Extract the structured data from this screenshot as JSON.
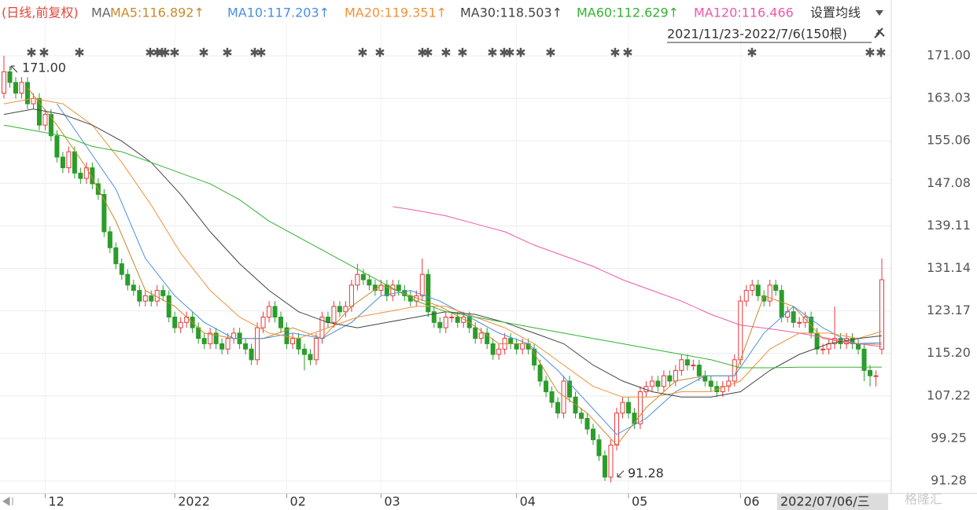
{
  "chart_data": {
    "type": "candlestick",
    "header": "(日线,前复权)",
    "ma_prefix": "MA",
    "settings_label": "设置均线",
    "range_label": "2021/11/23-2022/7/6(150根)",
    "cursor_label": "2022/07/06/三",
    "annotations": [
      "171.00",
      "91.28"
    ],
    "up_color": "#e8383d",
    "down_color": "#2a9d2a",
    "grid": true,
    "ylim": [
      88.92,
      181.46
    ],
    "yticks": [
      {
        "value": 171,
        "label": "171.00"
      },
      163.03,
      155.06,
      147.08,
      139.11,
      131.14,
      123.17,
      {
        "value": 115.2,
        "label": "115.20"
      },
      107.22,
      99.25,
      91.28
    ],
    "xticks": [
      {
        "value": 7,
        "label": "12"
      },
      {
        "value": 29,
        "label": "2022"
      },
      {
        "value": 48,
        "label": "02"
      },
      {
        "value": 64,
        "label": "03"
      },
      {
        "value": 87,
        "label": "04"
      },
      {
        "value": 106,
        "label": "05"
      },
      {
        "value": 125,
        "label": "06"
      }
    ],
    "ohlc": [
      [
        164,
        171,
        163,
        168
      ],
      [
        168,
        169,
        165,
        166
      ],
      [
        166,
        167,
        163,
        164
      ],
      [
        164,
        167,
        163,
        166
      ],
      [
        166,
        167,
        161,
        162
      ],
      [
        162,
        164,
        161,
        163
      ],
      [
        163,
        164,
        157,
        158
      ],
      [
        158,
        161,
        157,
        160
      ],
      [
        160,
        161,
        155,
        156
      ],
      [
        156,
        157,
        151,
        152
      ],
      [
        152,
        153,
        149,
        150
      ],
      [
        150,
        154,
        149,
        153
      ],
      [
        153,
        154,
        148,
        149
      ],
      [
        149,
        150,
        147,
        148
      ],
      [
        148,
        151,
        147,
        150
      ],
      [
        150,
        151,
        146,
        147
      ],
      [
        147,
        148,
        144,
        145
      ],
      [
        145,
        146,
        137,
        138
      ],
      [
        138,
        139,
        134,
        135
      ],
      [
        135,
        136,
        131,
        132
      ],
      [
        132,
        133,
        129,
        130
      ],
      [
        130,
        131,
        127,
        128
      ],
      [
        128,
        129,
        126,
        127
      ],
      [
        127,
        128,
        124,
        125
      ],
      [
        125,
        127,
        124,
        126
      ],
      [
        126,
        127,
        124,
        125
      ],
      [
        125,
        128,
        124,
        127
      ],
      [
        127,
        128,
        125,
        126
      ],
      [
        126,
        127,
        121,
        122
      ],
      [
        122,
        123,
        119,
        120
      ],
      [
        120,
        122,
        119,
        121
      ],
      [
        121,
        123,
        120,
        122
      ],
      [
        122,
        123,
        119,
        120
      ],
      [
        120,
        121,
        117,
        118
      ],
      [
        118,
        119,
        116,
        117
      ],
      [
        117,
        120,
        116,
        119
      ],
      [
        119,
        120,
        116,
        117
      ],
      [
        117,
        118,
        115,
        116
      ],
      [
        116,
        119,
        115,
        118
      ],
      [
        118,
        120,
        117,
        119
      ],
      [
        119,
        120,
        116,
        117
      ],
      [
        117,
        118,
        115,
        116
      ],
      [
        116,
        117,
        113,
        114
      ],
      [
        114,
        121,
        113,
        120
      ],
      [
        120,
        123,
        119,
        122
      ],
      [
        122,
        125,
        121,
        124
      ],
      [
        124,
        125,
        121,
        122
      ],
      [
        122,
        123,
        119,
        120
      ],
      [
        120,
        121,
        116,
        117
      ],
      [
        117,
        119,
        116,
        118
      ],
      [
        118,
        119,
        115,
        116
      ],
      [
        116,
        117,
        112,
        115
      ],
      [
        115,
        116,
        113,
        114
      ],
      [
        114,
        119,
        113,
        118
      ],
      [
        118,
        123,
        117,
        122
      ],
      [
        122,
        123,
        120,
        121
      ],
      [
        121,
        125,
        120,
        124
      ],
      [
        124,
        125,
        122,
        123
      ],
      [
        123,
        125,
        122,
        124
      ],
      [
        124,
        129,
        123,
        128
      ],
      [
        128,
        132,
        127,
        130
      ],
      [
        130,
        131,
        128,
        129
      ],
      [
        129,
        130,
        127,
        128
      ],
      [
        128,
        129,
        126,
        127
      ],
      [
        127,
        129,
        126,
        128
      ],
      [
        128,
        129,
        125,
        126
      ],
      [
        126,
        129,
        125,
        128
      ],
      [
        128,
        129,
        126,
        127
      ],
      [
        127,
        128,
        125,
        126
      ],
      [
        126,
        127,
        124,
        125
      ],
      [
        125,
        127,
        124,
        126
      ],
      [
        126,
        133,
        125,
        130
      ],
      [
        130,
        131,
        122,
        123
      ],
      [
        123,
        124,
        120,
        121
      ],
      [
        121,
        122,
        119,
        120
      ],
      [
        120,
        123,
        119,
        122
      ],
      [
        122,
        123,
        121,
        122
      ],
      [
        122,
        123,
        120,
        121
      ],
      [
        121,
        123,
        120,
        122
      ],
      [
        122,
        123,
        119,
        120
      ],
      [
        120,
        121,
        117,
        118
      ],
      [
        118,
        120,
        117,
        119
      ],
      [
        119,
        120,
        116,
        117
      ],
      [
        117,
        118,
        114,
        115
      ],
      [
        115,
        117,
        114,
        116
      ],
      [
        116,
        119,
        115,
        118
      ],
      [
        118,
        119,
        116,
        117
      ],
      [
        117,
        118,
        115,
        116
      ],
      [
        116,
        118,
        115,
        117
      ],
      [
        117,
        118,
        115,
        116
      ],
      [
        116,
        117,
        112,
        113
      ],
      [
        113,
        114,
        109,
        110
      ],
      [
        110,
        111,
        107,
        108
      ],
      [
        108,
        109,
        105,
        106
      ],
      [
        106,
        107,
        103,
        104
      ],
      [
        104,
        111,
        103,
        110
      ],
      [
        110,
        111,
        106,
        107
      ],
      [
        107,
        108,
        103,
        104
      ],
      [
        104,
        105,
        102,
        103
      ],
      [
        103,
        104,
        100,
        101
      ],
      [
        101,
        102,
        98,
        99
      ],
      [
        99,
        100,
        95,
        96
      ],
      [
        96,
        97,
        91.28,
        92
      ],
      [
        92,
        99,
        91,
        98
      ],
      [
        98,
        105,
        97,
        104
      ],
      [
        104,
        107,
        103,
        106
      ],
      [
        106,
        107,
        103,
        104
      ],
      [
        104,
        105,
        101,
        102
      ],
      [
        102,
        109,
        101,
        108
      ],
      [
        108,
        110,
        107,
        109
      ],
      [
        109,
        111,
        108,
        110
      ],
      [
        110,
        111,
        108,
        109
      ],
      [
        109,
        112,
        108,
        111
      ],
      [
        111,
        112,
        109,
        110
      ],
      [
        110,
        113,
        109,
        112
      ],
      [
        112,
        115,
        111,
        114
      ],
      [
        114,
        115,
        112,
        113
      ],
      [
        113,
        114,
        112,
        113
      ],
      [
        113,
        114,
        110,
        111
      ],
      [
        111,
        112,
        109,
        110
      ],
      [
        110,
        111,
        108,
        109
      ],
      [
        109,
        110,
        107,
        108
      ],
      [
        108,
        110,
        107,
        109
      ],
      [
        109,
        111,
        108,
        110
      ],
      [
        110,
        115,
        109,
        114
      ],
      [
        114,
        126,
        113,
        125
      ],
      [
        125,
        128,
        124,
        127
      ],
      [
        127,
        129,
        126,
        128
      ],
      [
        128,
        129,
        125,
        126
      ],
      [
        126,
        127,
        124,
        125
      ],
      [
        125,
        129,
        124,
        128
      ],
      [
        128,
        129,
        126,
        127
      ],
      [
        127,
        128,
        121,
        122
      ],
      [
        122,
        124,
        121,
        123
      ],
      [
        123,
        124,
        120,
        121
      ],
      [
        121,
        122,
        120,
        121
      ],
      [
        121,
        123,
        120,
        122
      ],
      [
        122,
        123,
        118,
        119
      ],
      [
        119,
        120,
        115,
        116
      ],
      [
        116,
        117,
        115,
        116
      ],
      [
        116,
        118,
        115,
        117
      ],
      [
        117,
        124,
        116,
        118
      ],
      [
        118,
        119,
        116,
        117
      ],
      [
        117,
        119,
        116,
        118
      ],
      [
        118,
        119,
        116,
        117
      ],
      [
        117,
        118,
        115,
        116
      ],
      [
        116,
        117,
        110,
        112
      ],
      [
        112,
        113,
        109,
        111
      ],
      [
        111,
        112,
        109,
        111
      ],
      [
        116,
        133,
        115,
        129
      ]
    ],
    "series": [
      {
        "name": "MA5",
        "legend_label": "MA5:116.892↑",
        "color": "#c98a2c",
        "x": [
          4,
          9,
          14,
          19,
          24,
          29,
          34,
          39,
          44,
          49,
          54,
          59,
          64,
          69,
          74,
          79,
          84,
          89,
          94,
          99,
          104,
          109,
          114,
          119,
          124,
          129,
          134,
          139,
          144,
          149
        ],
        "values": [
          165,
          158,
          150,
          140,
          127,
          124,
          119,
          118,
          118,
          120,
          118,
          124,
          128,
          126,
          124,
          121,
          117,
          117,
          108,
          104,
          98,
          105,
          110,
          111,
          111,
          126,
          124,
          118,
          117,
          116.892
        ]
      },
      {
        "name": "MA10",
        "legend_label": "MA10:117.203↑",
        "color": "#4a8fe0",
        "x": [
          9,
          14,
          19,
          24,
          29,
          34,
          39,
          44,
          49,
          54,
          59,
          64,
          69,
          74,
          79,
          84,
          89,
          94,
          99,
          104,
          109,
          114,
          119,
          124,
          129,
          134,
          139,
          144,
          149
        ],
        "values": [
          162,
          154,
          146,
          133,
          126,
          121,
          118,
          118,
          119,
          118,
          121,
          126,
          127,
          125,
          122,
          119,
          117,
          112,
          106,
          100,
          103,
          108,
          111,
          111,
          119,
          124,
          120,
          117,
          117.203
        ]
      },
      {
        "name": "MA20",
        "legend_label": "MA20:119.351↑",
        "color": "#f0923a",
        "x": [
          0,
          5,
          10,
          15,
          20,
          25,
          30,
          35,
          40,
          45,
          50,
          55,
          60,
          65,
          70,
          75,
          80,
          85,
          90,
          95,
          100,
          105,
          110,
          115,
          120,
          125,
          130,
          135,
          140,
          145,
          149
        ],
        "values": [
          162,
          163,
          162,
          158,
          151,
          143,
          134,
          127,
          122,
          119,
          118,
          120,
          122,
          123,
          124,
          124,
          122,
          120,
          117,
          113,
          109,
          107,
          107,
          108,
          108,
          110,
          116,
          119,
          119,
          118,
          119.351
        ]
      },
      {
        "name": "MA30",
        "legend_label": "MA30:118.503↑",
        "color": "#444444",
        "x": [
          0,
          5,
          10,
          15,
          20,
          25,
          30,
          35,
          40,
          45,
          50,
          55,
          60,
          65,
          70,
          75,
          80,
          85,
          90,
          95,
          100,
          105,
          110,
          115,
          120,
          125,
          130,
          135,
          140,
          145,
          149
        ],
        "values": [
          160,
          161,
          160,
          158,
          155,
          151,
          145,
          138,
          132,
          127,
          123,
          121,
          120,
          121,
          122,
          123,
          122.5,
          121,
          119,
          117,
          113,
          110,
          108,
          107,
          107,
          108,
          112,
          115,
          117,
          118,
          118.503
        ]
      },
      {
        "name": "MA60",
        "legend_label": "MA60:112.629↑",
        "color": "#33b233",
        "x": [
          0,
          5,
          10,
          15,
          20,
          25,
          30,
          35,
          40,
          45,
          50,
          55,
          60,
          65,
          70,
          75,
          80,
          85,
          90,
          95,
          100,
          105,
          110,
          115,
          120,
          125,
          130,
          135,
          140,
          145,
          149
        ],
        "values": [
          158,
          157,
          156,
          154,
          153,
          151,
          149,
          147,
          144,
          140,
          137,
          134,
          131,
          128,
          125,
          123,
          122,
          121,
          120,
          119,
          118,
          117,
          116,
          115,
          114,
          112.5,
          112.5,
          112.6,
          112.6,
          112.6,
          112.629
        ]
      },
      {
        "name": "MA120",
        "legend_label": "MA120:116.466",
        "color": "#ee5aa8",
        "x": [
          66,
          70,
          75,
          80,
          85,
          90,
          95,
          100,
          105,
          110,
          115,
          120,
          125,
          130,
          135,
          140,
          145,
          149
        ],
        "values": [
          142.7,
          142,
          141,
          139.5,
          138,
          135.5,
          133.5,
          131.5,
          129,
          127,
          125,
          122.5,
          120.5,
          119.8,
          119,
          118,
          117,
          116.466
        ]
      }
    ]
  }
}
